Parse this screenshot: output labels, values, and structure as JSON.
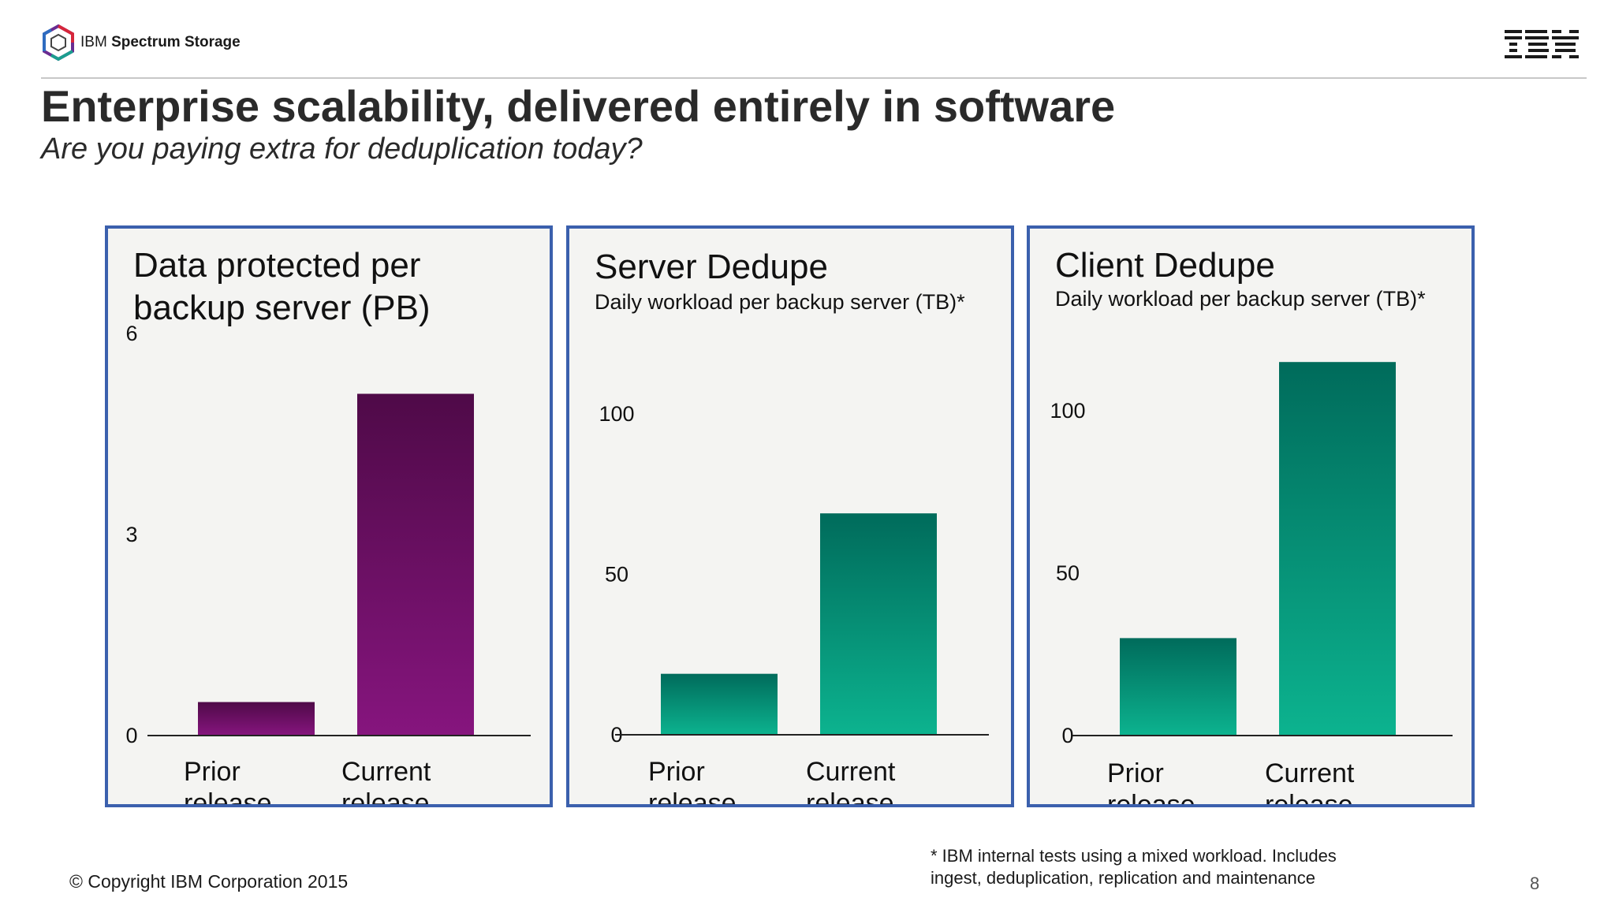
{
  "header": {
    "brand_prefix": "IBM",
    "brand_name": "Spectrum Storage",
    "corporate_logo": "IBM"
  },
  "slide": {
    "title": "Enterprise scalability, delivered entirely in software",
    "subtitle": "Are you paying extra for deduplication today?",
    "copyright": "© Copyright IBM Corporation 2015",
    "footnote_line1": "* IBM internal tests using a mixed workload. Includes",
    "footnote_line2": "ingest, deduplication, replication and maintenance",
    "page_number": "8"
  },
  "colors": {
    "panel_border": "#3b60ad",
    "purple_top": "#4f0a48",
    "purple_bottom": "#86157e",
    "green_top": "#006b5b",
    "green_bottom": "#0cb38f"
  },
  "chart_data": [
    {
      "type": "bar",
      "title_line1": "Data protected per",
      "title_line2": "backup server (PB)",
      "subtitle": "",
      "categories": [
        [
          "Prior",
          "release"
        ],
        [
          "Current",
          "release"
        ]
      ],
      "values": [
        0.5,
        5.1
      ],
      "ylim": [
        0,
        6
      ],
      "yticks": [
        0,
        3,
        6
      ],
      "color_scheme": "purple",
      "grid": false,
      "legend": "none"
    },
    {
      "type": "bar",
      "title_line1": "Server Dedupe",
      "title_line2": "",
      "subtitle": "Daily workload per backup server (TB)*",
      "categories": [
        [
          "Prior",
          "release"
        ],
        [
          "Current",
          "release"
        ]
      ],
      "values": [
        19,
        69
      ],
      "ylim": [
        0,
        100
      ],
      "yticks": [
        0,
        50,
        100
      ],
      "color_scheme": "green",
      "grid": false,
      "legend": "none"
    },
    {
      "type": "bar",
      "title_line1": "Client Dedupe",
      "title_line2": "",
      "subtitle": "Daily workload per backup server (TB)*",
      "categories": [
        [
          "Prior",
          "release"
        ],
        [
          "Current",
          "release"
        ]
      ],
      "values": [
        30,
        115
      ],
      "ylim": [
        0,
        100
      ],
      "yticks": [
        0,
        50,
        100
      ],
      "color_scheme": "green",
      "grid": false,
      "legend": "none"
    }
  ]
}
